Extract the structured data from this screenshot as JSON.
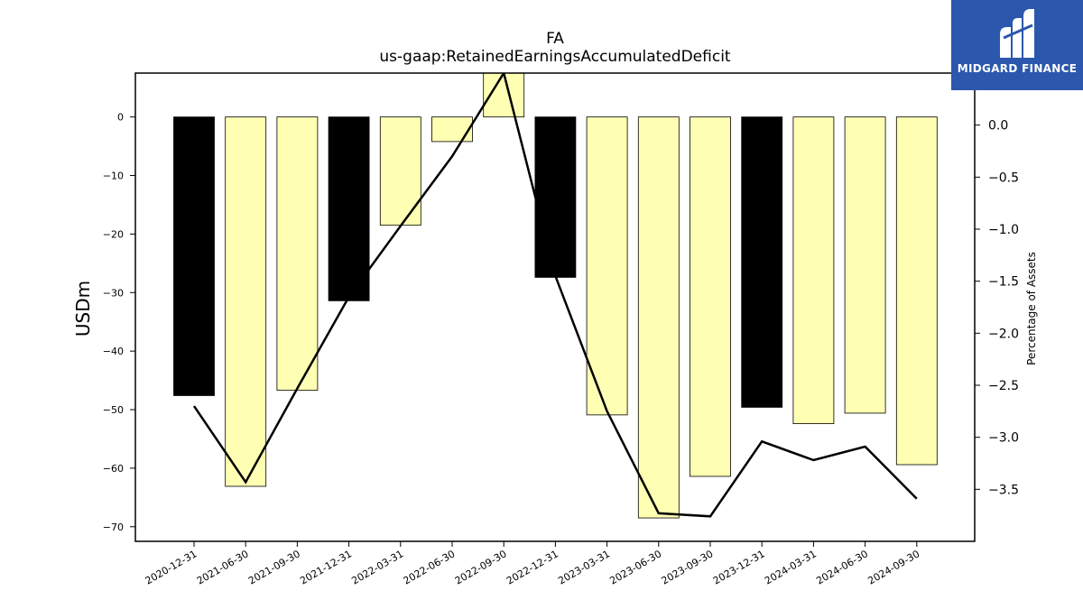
{
  "chart_data": {
    "type": "bar",
    "title": "FA",
    "subtitle": "us-gaap:RetainedEarningsAccumulatedDeficit",
    "ylabel": "USDm",
    "ylabel_right": "Percentage of Assets",
    "categories": [
      "2020-12-31",
      "2021-06-30",
      "2021-09-30",
      "2021-12-31",
      "2022-03-31",
      "2022-06-30",
      "2022-09-30",
      "2022-12-31",
      "2023-03-31",
      "2023-06-30",
      "2023-09-30",
      "2023-12-31",
      "2024-03-31",
      "2024-06-30",
      "2024-09-30"
    ],
    "series": [
      {
        "type": "bar",
        "axis": "left",
        "values": [
          -47.6,
          -63.1,
          -46.7,
          -31.4,
          -18.5,
          -4.2,
          7.5,
          -27.4,
          -50.9,
          -68.5,
          -61.4,
          -49.6,
          -52.4,
          -50.6,
          -59.4
        ],
        "highlight": [
          true,
          false,
          false,
          true,
          false,
          false,
          false,
          true,
          false,
          false,
          false,
          true,
          false,
          false,
          false
        ],
        "colors": {
          "highlight": "#000000",
          "normal": "#ffffb3"
        }
      },
      {
        "type": "line",
        "axis": "right",
        "values": [
          -2.7,
          -3.43,
          -2.53,
          -1.65,
          -0.97,
          -0.3,
          0.5,
          -1.45,
          -2.75,
          -3.73,
          -3.76,
          -3.04,
          -3.22,
          -3.09,
          -3.59
        ],
        "color": "#000000"
      }
    ],
    "yticks_left": [
      0,
      -10,
      -20,
      -30,
      -40,
      -50,
      -60,
      -70
    ],
    "yticks_left_labels": [
      "0",
      "−10",
      "−20",
      "−30",
      "−40",
      "−50",
      "−60",
      "−70"
    ],
    "yticks_right": [
      0.0,
      -0.5,
      -1.0,
      -1.5,
      -2.0,
      -2.5,
      -3.0,
      -3.5
    ],
    "yticks_right_labels": [
      "0.0",
      "−0.5",
      "−1.0",
      "−1.5",
      "−2.0",
      "−2.5",
      "−3.0",
      "−3.5"
    ],
    "ylim_left": [
      -72.5,
      7.5
    ],
    "ylim_right": [
      -4.0,
      0.5
    ],
    "grid": false,
    "legend": "none"
  },
  "logo": {
    "text": "MIDGARD FINANCE",
    "background": "#2b58ac"
  }
}
